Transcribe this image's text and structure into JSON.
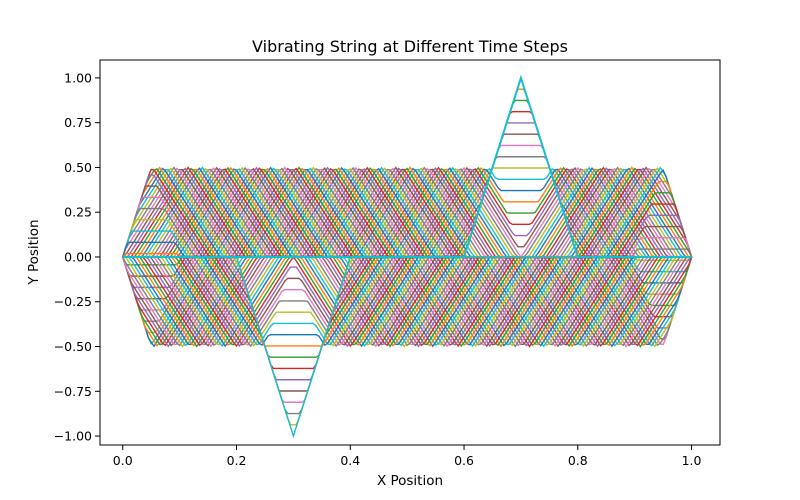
{
  "chart_data": {
    "type": "line",
    "title": "Vibrating String at Different Time Steps",
    "xlabel": "X Position",
    "ylabel": "Y Position",
    "xlim": [
      -0.04,
      1.05
    ],
    "ylim": [
      -1.05,
      1.1
    ],
    "x_ticks": [
      0.0,
      0.2,
      0.4,
      0.6,
      0.8,
      1.0
    ],
    "x_tick_labels": [
      "0.0",
      "0.2",
      "0.4",
      "0.6",
      "0.8",
      "1.0"
    ],
    "y_ticks": [
      -1.0,
      -0.75,
      -0.5,
      -0.25,
      0.0,
      0.25,
      0.5,
      0.75,
      1.0
    ],
    "y_tick_labels": [
      "−1.00",
      "−0.75",
      "−0.50",
      "−0.25",
      "0.00",
      "0.25",
      "0.50",
      "0.75",
      "1.00"
    ],
    "grid": false,
    "legend": "none",
    "series_count": 160,
    "initial_condition": {
      "description": "Triangular pulse of height 1 between x=0.6 and x=0.8, peak at x=0.7",
      "x": [
        0.0,
        0.6,
        0.7,
        0.8,
        1.0
      ],
      "y": [
        0.0,
        0.0,
        1.0,
        0.0,
        0.0
      ]
    },
    "half_pulse_amplitude": 0.5,
    "colors": [
      "#1f77b4",
      "#ff7f0e",
      "#2ca02c",
      "#d62728",
      "#9467bd",
      "#8c564b",
      "#e377c2",
      "#7f7f7f",
      "#bcbd22",
      "#17becf"
    ],
    "final_series_color": "#17becf"
  }
}
